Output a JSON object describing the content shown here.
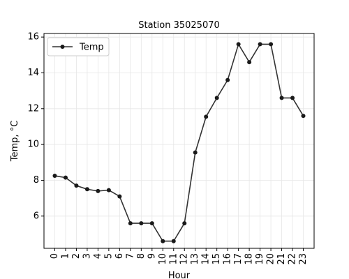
{
  "chart_data": {
    "type": "line",
    "title": "Station 35025070",
    "xlabel": "Hour",
    "ylabel": "Temp, °C",
    "x": [
      0,
      1,
      2,
      3,
      4,
      5,
      6,
      7,
      8,
      9,
      10,
      11,
      12,
      13,
      14,
      15,
      16,
      17,
      18,
      19,
      20,
      21,
      22,
      23
    ],
    "series": [
      {
        "name": "Temp",
        "values": [
          8.25,
          8.15,
          7.7,
          7.5,
          7.4,
          7.45,
          7.1,
          5.6,
          5.6,
          5.6,
          4.6,
          4.6,
          5.6,
          9.55,
          11.55,
          12.6,
          13.6,
          15.6,
          14.6,
          15.6,
          15.6,
          12.6,
          12.6,
          11.6
        ],
        "color": "#333333"
      }
    ],
    "xlim": [
      -1,
      24
    ],
    "ylim": [
      4.2,
      16.2
    ],
    "yticks": [
      6,
      8,
      10,
      12,
      14,
      16
    ],
    "grid": true,
    "legend_position": "top-left"
  }
}
